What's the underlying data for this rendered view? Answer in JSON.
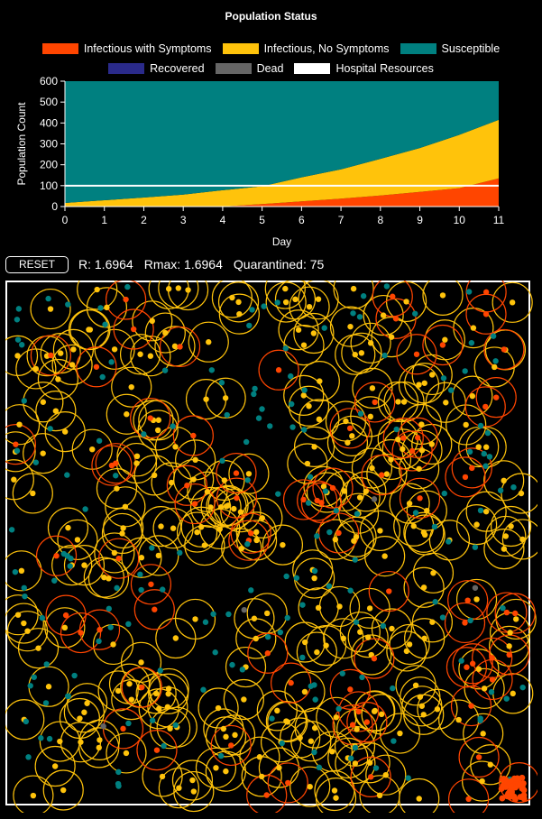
{
  "title": "Population Status",
  "legend": {
    "row1": [
      {
        "label": "Infectious with Symptoms",
        "color": "#ff4500"
      },
      {
        "label": "Infectious, No Symptoms",
        "color": "#ffc30b"
      },
      {
        "label": "Susceptible",
        "color": "#008080"
      }
    ],
    "row2": [
      {
        "label": "Recovered",
        "color": "#2a2a8a"
      },
      {
        "label": "Dead",
        "color": "#666666"
      },
      {
        "label": "Hospital Resources",
        "color": "#ffffff"
      }
    ]
  },
  "controls": {
    "reset_label": "RESET",
    "r_text": "R: 1.6964",
    "rmax_text": "Rmax: 1.6964",
    "quarantined_text": "Quarantined: 75"
  },
  "chart_data": {
    "type": "area",
    "stacked": true,
    "title": "Population Status",
    "xlabel": "Day",
    "ylabel": "Population Count",
    "xlim": [
      0,
      11
    ],
    "ylim": [
      0,
      600
    ],
    "x_ticks": [
      0,
      1,
      2,
      3,
      4,
      5,
      6,
      7,
      8,
      9,
      10,
      11
    ],
    "y_ticks": [
      0,
      100,
      200,
      300,
      400,
      500,
      600
    ],
    "legend_position": "top",
    "x": [
      0,
      1,
      2,
      3,
      4,
      5,
      6,
      7,
      8,
      9,
      10,
      11
    ],
    "series": [
      {
        "name": "Infectious with Symptoms",
        "color": "#ff4500",
        "values": [
          0,
          0,
          0,
          0,
          0,
          12,
          25,
          38,
          53,
          70,
          88,
          135
        ]
      },
      {
        "name": "Infectious, No Symptoms",
        "color": "#ffc30b",
        "values": [
          17,
          30,
          43,
          57,
          78,
          85,
          115,
          140,
          175,
          210,
          255,
          280
        ]
      },
      {
        "name": "Susceptible",
        "color": "#008080",
        "values": [
          583,
          570,
          557,
          543,
          522,
          503,
          460,
          422,
          372,
          320,
          257,
          185
        ]
      },
      {
        "name": "Recovered",
        "color": "#2a2a8a",
        "values": [
          0,
          0,
          0,
          0,
          0,
          0,
          0,
          0,
          0,
          0,
          0,
          0
        ]
      },
      {
        "name": "Dead",
        "color": "#666666",
        "values": [
          0,
          0,
          0,
          0,
          0,
          0,
          0,
          0,
          0,
          0,
          0,
          0
        ]
      }
    ],
    "hospital_resources": 100
  },
  "simulation": {
    "colors": {
      "symptomatic": "#ff4500",
      "asymptomatic": "#ffc30b",
      "susceptible": "#008080",
      "dead": "#666666",
      "border": "#ffffff"
    }
  }
}
